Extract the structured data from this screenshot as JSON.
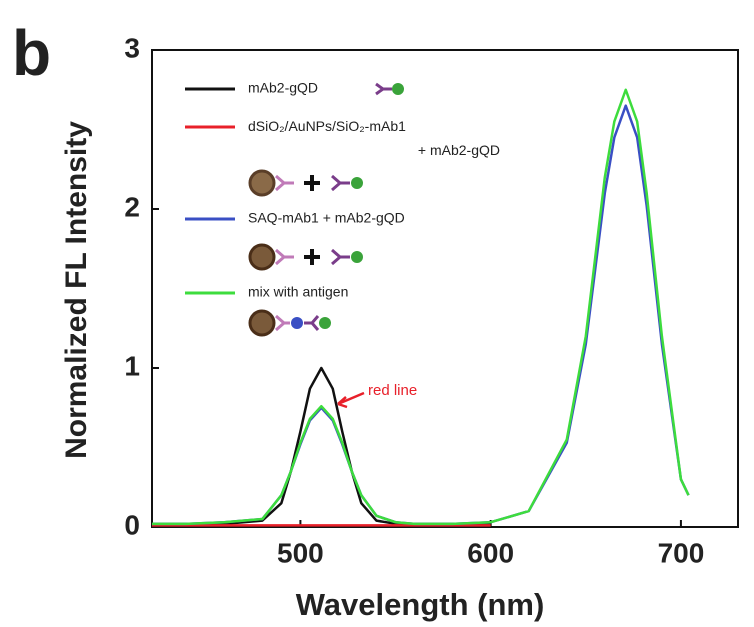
{
  "panel_label": "b",
  "chart_data": {
    "type": "line",
    "xlabel": "Wavelength (nm)",
    "ylabel": "Normalized FL Intensity",
    "xlim": [
      422,
      730
    ],
    "ylim": [
      0,
      3
    ],
    "xticks": [
      500,
      600,
      700
    ],
    "yticks": [
      0,
      1,
      2,
      3
    ],
    "annotation": "red line",
    "x": [
      422,
      440,
      460,
      480,
      490,
      495,
      500,
      505,
      511,
      517,
      522,
      527,
      532,
      540,
      550,
      560,
      580,
      600,
      620,
      640,
      650,
      660,
      665,
      671,
      677,
      682,
      690,
      700,
      704
    ],
    "series": [
      {
        "name": "mAb2-gQD",
        "color": "#111111",
        "values": [
          0.02,
          0.02,
          0.02,
          0.04,
          0.15,
          0.35,
          0.6,
          0.87,
          1.0,
          0.87,
          0.6,
          0.35,
          0.15,
          0.04,
          0.02,
          0.02,
          0.02,
          0.02,
          null,
          null,
          null,
          null,
          null,
          null,
          null,
          null,
          null,
          null,
          null
        ]
      },
      {
        "name": "dSiO₂/AuNPs/SiO₂-mAb1 + mAb2-gQD",
        "color": "#e8202a",
        "values": [
          0.01,
          0.01,
          0.01,
          0.01,
          0.01,
          0.01,
          0.01,
          0.01,
          0.01,
          0.01,
          0.01,
          0.01,
          0.01,
          0.01,
          0.01,
          0.01,
          0.01,
          0.01,
          null,
          null,
          null,
          null,
          null,
          null,
          null,
          null,
          null,
          null,
          null
        ]
      },
      {
        "name": "SAQ-mAb1 + mAb2-gQD",
        "color": "#3a4fc4",
        "values": [
          0.02,
          0.02,
          0.03,
          0.05,
          0.2,
          0.35,
          0.52,
          0.67,
          0.75,
          0.67,
          0.52,
          0.35,
          0.2,
          0.07,
          0.03,
          0.02,
          0.02,
          0.03,
          0.1,
          0.53,
          1.15,
          2.1,
          2.45,
          2.65,
          2.45,
          2.02,
          1.15,
          0.3,
          0.2
        ]
      },
      {
        "name": "mix with antigen",
        "color": "#3ddc3d",
        "values": [
          0.02,
          0.02,
          0.03,
          0.05,
          0.2,
          0.35,
          0.53,
          0.68,
          0.76,
          0.68,
          0.53,
          0.35,
          0.2,
          0.07,
          0.03,
          0.02,
          0.02,
          0.03,
          0.1,
          0.55,
          1.2,
          2.2,
          2.55,
          2.75,
          2.55,
          2.1,
          1.2,
          0.3,
          0.2
        ]
      }
    ]
  }
}
